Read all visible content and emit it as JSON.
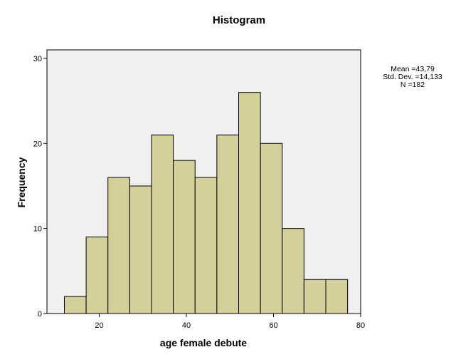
{
  "chart_data": {
    "type": "bar",
    "title": "Histogram",
    "xlabel": "age female debute",
    "ylabel": "Frequency",
    "bin_width": 5,
    "bins": [
      {
        "start": 12,
        "end": 17,
        "count": 2
      },
      {
        "start": 17,
        "end": 22,
        "count": 9
      },
      {
        "start": 22,
        "end": 27,
        "count": 16
      },
      {
        "start": 27,
        "end": 32,
        "count": 15
      },
      {
        "start": 32,
        "end": 37,
        "count": 21
      },
      {
        "start": 37,
        "end": 42,
        "count": 18
      },
      {
        "start": 42,
        "end": 47,
        "count": 16
      },
      {
        "start": 47,
        "end": 52,
        "count": 21
      },
      {
        "start": 52,
        "end": 57,
        "count": 26
      },
      {
        "start": 57,
        "end": 62,
        "count": 20
      },
      {
        "start": 62,
        "end": 67,
        "count": 10
      },
      {
        "start": 67,
        "end": 72,
        "count": 4
      },
      {
        "start": 72,
        "end": 77,
        "count": 4
      }
    ],
    "xlim": [
      8,
      80
    ],
    "ylim": [
      0,
      31
    ],
    "xticks": [
      20,
      40,
      60,
      80
    ],
    "yticks": [
      0,
      10,
      20,
      30
    ],
    "grid": false,
    "bar_color": "#d4d09b",
    "plot_background": "#f0f0f0",
    "stats": {
      "mean": "Mean =43,79",
      "std": "Std. Dev. =14,133",
      "n": "N =182"
    }
  }
}
